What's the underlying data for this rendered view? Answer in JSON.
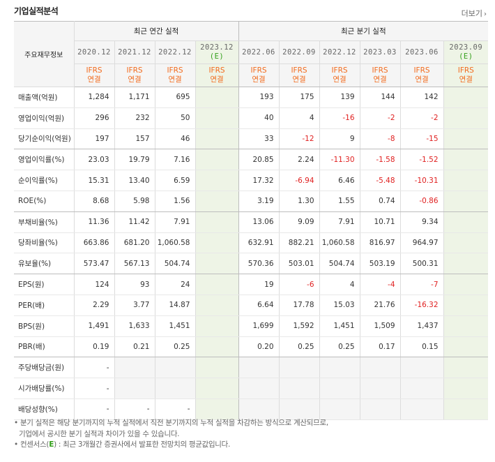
{
  "title": "기업실적분석",
  "more_label": "더보기",
  "header": {
    "row_label": "주요재무정보",
    "annual_group": "최근 연간 실적",
    "quarter_group": "최근 분기 실적",
    "periods": [
      "2020.12",
      "2021.12",
      "2022.12",
      "2023.12",
      "2022.06",
      "2022.09",
      "2022.12",
      "2023.03",
      "2023.06",
      "2023.09"
    ],
    "estimate_mark": "(E)",
    "ifrs_line1": "IFRS",
    "ifrs_line2": "연결"
  },
  "rows": [
    {
      "label": "매출액(억원)",
      "values": [
        "1,284",
        "1,171",
        "695",
        "",
        "193",
        "175",
        "139",
        "144",
        "142",
        ""
      ]
    },
    {
      "label": "영업이익(억원)",
      "values": [
        "296",
        "232",
        "50",
        "",
        "40",
        "4",
        "-16",
        "-2",
        "-2",
        ""
      ]
    },
    {
      "label": "당기순이익(억원)",
      "values": [
        "197",
        "157",
        "46",
        "",
        "33",
        "-12",
        "9",
        "-8",
        "-15",
        ""
      ]
    },
    {
      "label": "영업이익률(%)",
      "values": [
        "23.03",
        "19.79",
        "7.16",
        "",
        "20.85",
        "2.24",
        "-11.30",
        "-1.58",
        "-1.52",
        ""
      ]
    },
    {
      "label": "순이익률(%)",
      "values": [
        "15.31",
        "13.40",
        "6.59",
        "",
        "17.32",
        "-6.94",
        "6.46",
        "-5.48",
        "-10.31",
        ""
      ]
    },
    {
      "label": "ROE(%)",
      "values": [
        "8.68",
        "5.98",
        "1.56",
        "",
        "3.19",
        "1.30",
        "1.55",
        "0.74",
        "-0.86",
        ""
      ]
    },
    {
      "label": "부채비율(%)",
      "values": [
        "11.36",
        "11.42",
        "7.91",
        "",
        "13.06",
        "9.09",
        "7.91",
        "10.71",
        "9.34",
        ""
      ]
    },
    {
      "label": "당좌비율(%)",
      "values": [
        "663.86",
        "681.20",
        "1,060.58",
        "",
        "632.91",
        "882.21",
        "1,060.58",
        "816.97",
        "964.97",
        ""
      ]
    },
    {
      "label": "유보율(%)",
      "values": [
        "573.47",
        "567.13",
        "504.74",
        "",
        "570.36",
        "503.01",
        "504.74",
        "503.19",
        "500.31",
        ""
      ]
    },
    {
      "label": "EPS(원)",
      "values": [
        "124",
        "93",
        "24",
        "",
        "19",
        "-6",
        "4",
        "-4",
        "-7",
        ""
      ]
    },
    {
      "label": "PER(배)",
      "values": [
        "2.29",
        "3.77",
        "14.87",
        "",
        "6.64",
        "17.78",
        "15.03",
        "21.76",
        "-16.32",
        ""
      ]
    },
    {
      "label": "BPS(원)",
      "values": [
        "1,491",
        "1,633",
        "1,451",
        "",
        "1,699",
        "1,592",
        "1,451",
        "1,509",
        "1,437",
        ""
      ]
    },
    {
      "label": "PBR(배)",
      "values": [
        "0.19",
        "0.21",
        "0.25",
        "",
        "0.20",
        "0.25",
        "0.25",
        "0.17",
        "0.15",
        ""
      ]
    },
    {
      "label": "주당배당금(원)",
      "values": [
        "-",
        "",
        "",
        "",
        "",
        "",
        "",
        "",
        "",
        ""
      ]
    },
    {
      "label": "시가배당률(%)",
      "values": [
        "-",
        "",
        "",
        "",
        "",
        "",
        "",
        "",
        "",
        ""
      ]
    },
    {
      "label": "배당성향(%)",
      "values": [
        "-",
        "-",
        "-",
        "",
        "",
        "",
        "",
        "",
        "",
        ""
      ]
    }
  ],
  "notes": {
    "line1": "분기 실적은 해당 분기까지의 누적 실적에서 직전 분기까지의 누적 실적을 차감하는 방식으로 계산되므로,",
    "line2": "기업에서 공시한 분기 실적과 차이가 있을 수 있습니다.",
    "line3_pre": "컨센서스(",
    "line3_mark": "E",
    "line3_post": ") : 최근 3개월간 증권사에서 발표한 전망치의 평균값입니다."
  },
  "colors": {
    "negative": "#e02020",
    "ifrs": "#f26b1d",
    "estimate": "#34a01b",
    "estimate_bg": "#eef4e6"
  }
}
